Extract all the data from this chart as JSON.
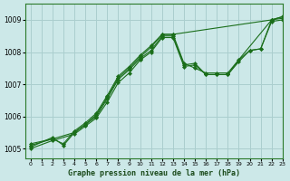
{
  "title": "Graphe pression niveau de la mer (hPa)",
  "background_color": "#cce8e8",
  "grid_color": "#aacece",
  "line_color": "#1a6e1a",
  "xlim": [
    -0.5,
    23
  ],
  "ylim": [
    1004.7,
    1009.5
  ],
  "yticks": [
    1005,
    1006,
    1007,
    1008,
    1009
  ],
  "xticks": [
    0,
    1,
    2,
    3,
    4,
    5,
    6,
    7,
    8,
    9,
    10,
    11,
    12,
    13,
    14,
    15,
    16,
    17,
    18,
    19,
    20,
    21,
    22,
    23
  ],
  "lines": [
    {
      "x": [
        0,
        2,
        3,
        4,
        5,
        6,
        7,
        8,
        9,
        10,
        11,
        12,
        13,
        22,
        23
      ],
      "y": [
        1005.05,
        1005.35,
        1005.1,
        1005.5,
        1005.75,
        1006.05,
        1006.6,
        1007.2,
        1007.5,
        1007.85,
        1008.15,
        1008.55,
        1008.55,
        1009.0,
        1009.1
      ]
    },
    {
      "x": [
        0,
        2,
        3,
        4,
        5,
        6,
        7,
        8,
        9,
        10,
        11,
        12,
        13,
        14,
        15,
        16,
        17,
        18,
        22,
        23
      ],
      "y": [
        1005.1,
        1005.3,
        1005.15,
        1005.55,
        1005.8,
        1006.1,
        1006.65,
        1007.25,
        1007.55,
        1007.9,
        1008.2,
        1008.55,
        1008.55,
        1007.65,
        1007.5,
        1007.35,
        1007.35,
        1007.35,
        1009.0,
        1009.1
      ]
    },
    {
      "x": [
        0,
        2,
        4,
        5,
        6,
        7,
        8,
        9,
        10,
        11,
        12,
        13,
        14,
        15,
        16,
        17,
        18,
        19,
        20,
        21,
        22,
        23
      ],
      "y": [
        1005.0,
        1005.25,
        1005.45,
        1005.7,
        1005.95,
        1006.45,
        1007.05,
        1007.35,
        1007.75,
        1008.0,
        1008.45,
        1008.45,
        1007.55,
        1007.6,
        1007.3,
        1007.3,
        1007.3,
        1007.75,
        1008.05,
        1008.1,
        1008.95,
        1009.0
      ]
    },
    {
      "x": [
        0,
        2,
        4,
        5,
        6,
        7,
        8,
        9,
        10,
        11,
        12,
        13,
        14,
        15,
        16,
        17,
        18,
        19,
        20,
        21,
        22,
        23
      ],
      "y": [
        1005.15,
        1005.3,
        1005.5,
        1005.75,
        1006.0,
        1006.55,
        1007.15,
        1007.45,
        1007.8,
        1008.05,
        1008.5,
        1008.5,
        1007.6,
        1007.65,
        1007.3,
        1007.3,
        1007.3,
        1007.7,
        1008.05,
        1008.1,
        1009.0,
        1009.05
      ]
    }
  ]
}
